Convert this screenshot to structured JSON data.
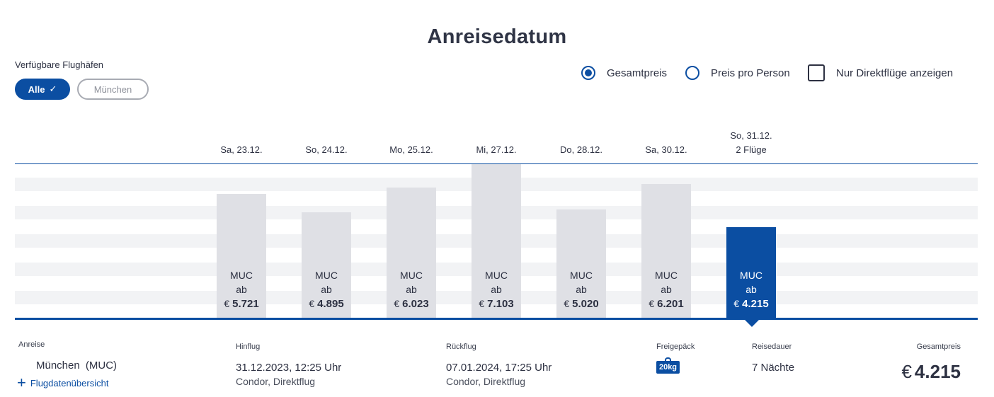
{
  "title": "Anreisedatum",
  "airports": {
    "label": "Verfügbare Flughäfen",
    "chips": [
      {
        "label": "Alle",
        "selected": true
      },
      {
        "label": "München",
        "selected": false
      }
    ]
  },
  "options": {
    "total_price": {
      "label": "Gesamtpreis",
      "selected": true
    },
    "per_person": {
      "label": "Preis pro Person",
      "selected": false
    },
    "direct_only": {
      "label": "Nur Direktflüge anzeigen",
      "checked": false
    }
  },
  "dates": [
    {
      "day": "Sa, 23.12.",
      "airport": "MUC",
      "from": "ab",
      "currency": "€",
      "price": "5.721",
      "value": 5721,
      "selected": false
    },
    {
      "day": "So, 24.12.",
      "airport": "MUC",
      "from": "ab",
      "currency": "€",
      "price": "4.895",
      "value": 4895,
      "selected": false
    },
    {
      "day": "Mo, 25.12.",
      "airport": "MUC",
      "from": "ab",
      "currency": "€",
      "price": "6.023",
      "value": 6023,
      "selected": false
    },
    {
      "day": "Mi, 27.12.",
      "airport": "MUC",
      "from": "ab",
      "currency": "€",
      "price": "7.103",
      "value": 7103,
      "selected": false
    },
    {
      "day": "Do, 28.12.",
      "airport": "MUC",
      "from": "ab",
      "currency": "€",
      "price": "5.020",
      "value": 5020,
      "selected": false
    },
    {
      "day": "Sa, 30.12.",
      "airport": "MUC",
      "from": "ab",
      "currency": "€",
      "price": "6.201",
      "value": 6201,
      "selected": false
    },
    {
      "day": "So, 31.12.",
      "note": "2 Flüge",
      "airport": "MUC",
      "from": "ab",
      "currency": "€",
      "price": "4.215",
      "value": 4215,
      "selected": true
    }
  ],
  "details": {
    "arrival": {
      "label": "Anreise",
      "airport": "München",
      "code": "(MUC)",
      "link": "Flugdatenübersicht"
    },
    "outbound": {
      "label": "Hinflug",
      "datetime": "31.12.2023, 12:25 Uhr",
      "airline": "Condor, Direktflug"
    },
    "return": {
      "label": "Rückflug",
      "datetime": "07.01.2024, 17:25 Uhr",
      "airline": "Condor, Direktflug"
    },
    "baggage": {
      "label": "Freigepäck",
      "weight": "20kg"
    },
    "duration": {
      "label": "Reisedauer",
      "value": "7 Nächte"
    },
    "total": {
      "label": "Gesamtpreis",
      "currency": "€",
      "value": "4.215"
    }
  },
  "colors": {
    "accent": "#0b4ea2",
    "bar": "#dfe0e5",
    "stripe": "#f2f3f5",
    "text": "#2d3142"
  }
}
